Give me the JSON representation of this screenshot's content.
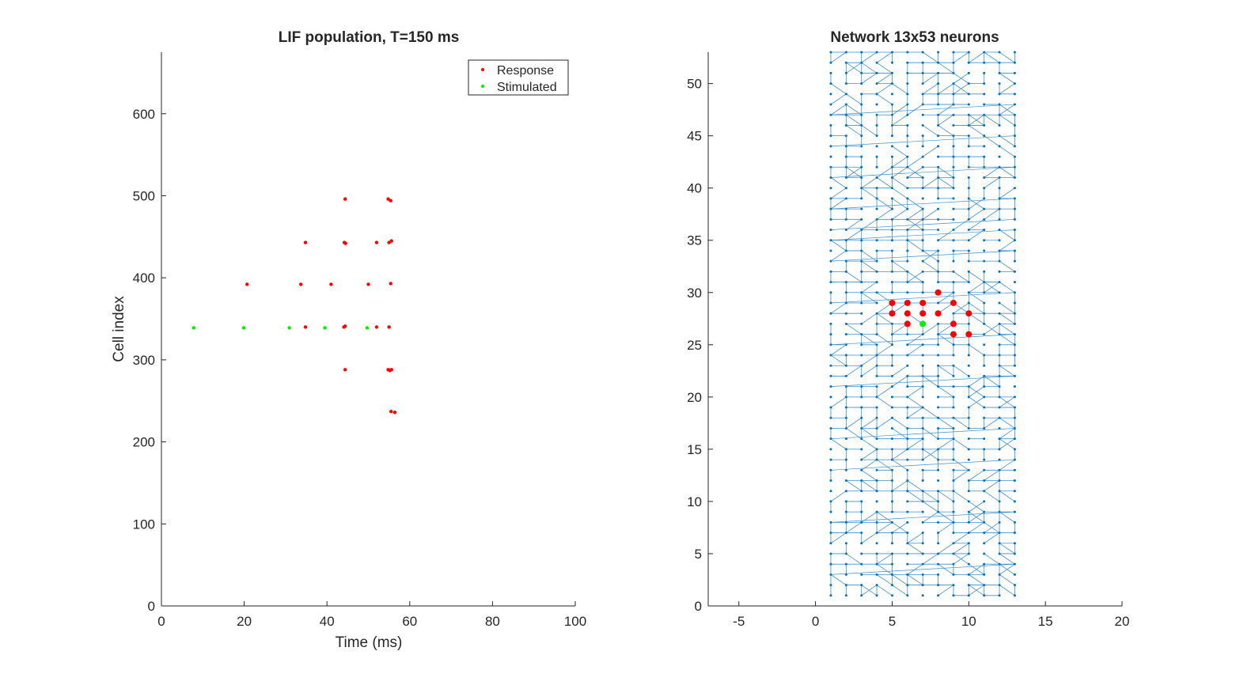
{
  "figure": {
    "background": "#ffffff"
  },
  "chart_data": [
    {
      "type": "scatter",
      "title": "LIF population, T=150 ms",
      "xlabel": "Time (ms)",
      "ylabel": "Cell index",
      "xlim": [
        0,
        100
      ],
      "ylim": [
        0,
        675
      ],
      "xticks": [
        "0",
        "20",
        "40",
        "60",
        "80",
        "100"
      ],
      "yticks": [
        "0",
        "100",
        "200",
        "300",
        "400",
        "500",
        "600"
      ],
      "grid": false,
      "legend_position": "top-right",
      "series": [
        {
          "name": "Response",
          "color": "#ff0000",
          "points": [
            [
              20.7,
              392
            ],
            [
              34.8,
              443
            ],
            [
              33.7,
              392
            ],
            [
              34.8,
              340
            ],
            [
              41.0,
              392
            ],
            [
              44.4,
              496
            ],
            [
              44.2,
              443
            ],
            [
              44.5,
              442
            ],
            [
              44.1,
              340
            ],
            [
              44.4,
              341
            ],
            [
              44.4,
              288
            ],
            [
              50.0,
              392
            ],
            [
              52.0,
              443
            ],
            [
              52.0,
              340
            ],
            [
              54.8,
              496
            ],
            [
              55.4,
              494
            ],
            [
              55.0,
              443
            ],
            [
              55.6,
              445
            ],
            [
              55.0,
              340
            ],
            [
              55.4,
              393
            ],
            [
              54.8,
              288
            ],
            [
              55.2,
              287
            ],
            [
              55.6,
              288
            ],
            [
              55.5,
              237
            ],
            [
              56.4,
              236
            ]
          ]
        },
        {
          "name": "Stimulated",
          "color": "#00ee00",
          "points": [
            [
              7.8,
              339
            ],
            [
              19.9,
              339
            ],
            [
              30.9,
              339
            ],
            [
              39.5,
              339
            ],
            [
              49.7,
              339
            ]
          ]
        }
      ]
    },
    {
      "type": "scatter",
      "title": "Network 13x53 neurons",
      "xlabel": "",
      "ylabel": "",
      "xlim": [
        -7,
        20
      ],
      "ylim": [
        0,
        53
      ],
      "xticks": [
        "-5",
        "0",
        "5",
        "10",
        "15",
        "20"
      ],
      "yticks": [
        "0",
        "5",
        "10",
        "15",
        "20",
        "25",
        "30",
        "35",
        "40",
        "45",
        "50"
      ],
      "grid": false,
      "lattice": {
        "columns": 13,
        "rows": 53,
        "x_start": 1,
        "y_start": 1,
        "color": "#0072bd",
        "edge_color": "#3e8fcf"
      },
      "series": [
        {
          "name": "Response",
          "color": "#ff0000",
          "points": [
            [
              5,
              29
            ],
            [
              6,
              29
            ],
            [
              7,
              29
            ],
            [
              9,
              29
            ],
            [
              8,
              30
            ],
            [
              5,
              28
            ],
            [
              6,
              28
            ],
            [
              7,
              28
            ],
            [
              8,
              28
            ],
            [
              10,
              28
            ],
            [
              6,
              27
            ],
            [
              9,
              27
            ],
            [
              9,
              26
            ],
            [
              10,
              26
            ]
          ]
        },
        {
          "name": "Stimulated",
          "color": "#00ee00",
          "points": [
            [
              7,
              27
            ]
          ]
        }
      ]
    }
  ]
}
